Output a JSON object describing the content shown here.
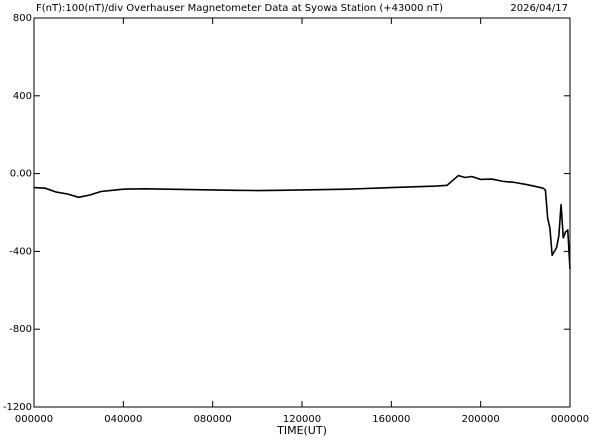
{
  "chart_data": {
    "type": "line",
    "title": "F(nT):100(nT)/div  Overhauser Magnetometer Data at Syowa Station (+43000 nT)",
    "date": "2026/04/17",
    "xlabel": "TIME(UT)",
    "x": [
      0,
      0.5,
      1,
      1.5,
      2,
      2.5,
      3,
      3.5,
      4,
      5,
      6,
      7,
      8,
      9,
      10,
      11,
      12,
      13,
      14,
      15,
      16,
      17,
      18,
      18.5,
      18.8,
      19,
      19.3,
      19.6,
      20,
      20.5,
      21,
      21.5,
      22,
      22.3,
      22.6,
      22.8,
      22.9,
      23.0,
      23.1,
      23.2,
      23.3,
      23.4,
      23.5,
      23.6,
      23.7,
      23.8,
      23.9,
      24
    ],
    "series": [
      {
        "name": "F",
        "color": "#000000",
        "values": [
          -72,
          -75,
          -95,
          -105,
          -122,
          -110,
          -92,
          -86,
          -80,
          -78,
          -80,
          -82,
          -84,
          -86,
          -87,
          -86,
          -84,
          -82,
          -80,
          -76,
          -72,
          -68,
          -64,
          -60,
          -30,
          -10,
          -20,
          -15,
          -30,
          -28,
          -40,
          -45,
          -55,
          -62,
          -70,
          -75,
          -85,
          -230,
          -280,
          -420,
          -400,
          -380,
          -320,
          -160,
          -330,
          -300,
          -290,
          -490
        ]
      }
    ],
    "xlim": [
      0,
      24
    ],
    "xticks": [
      {
        "value": 0,
        "label": "000000"
      },
      {
        "value": 4,
        "label": "040000"
      },
      {
        "value": 8,
        "label": "080000"
      },
      {
        "value": 12,
        "label": "120000"
      },
      {
        "value": 16,
        "label": "160000"
      },
      {
        "value": 20,
        "label": "200000"
      },
      {
        "value": 24,
        "label": "000000"
      }
    ],
    "ylim": [
      -1200,
      800
    ],
    "yticks": [
      800,
      400,
      {
        "value": 0,
        "label": "0.00"
      },
      -400,
      -800,
      -1200
    ]
  }
}
